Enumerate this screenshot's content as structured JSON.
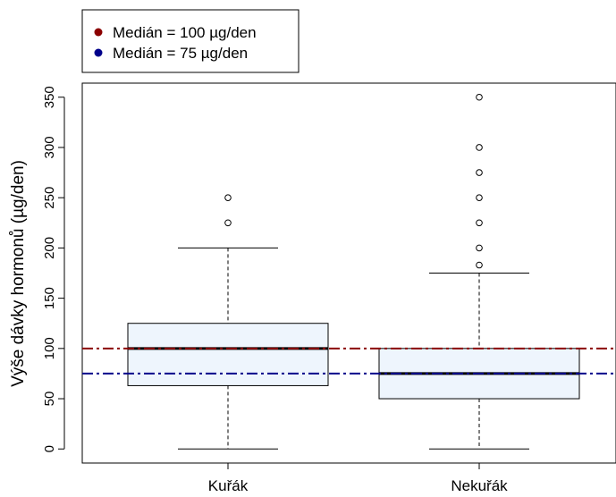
{
  "chart_data": {
    "type": "box",
    "ylabel": "Výše dávky hormonů (µg/den)",
    "ylim": [
      -14,
      364
    ],
    "yticks": [
      0,
      50,
      100,
      150,
      200,
      250,
      300,
      350
    ],
    "categories": [
      "Kuřák",
      "Nekuřák"
    ],
    "boxes": [
      {
        "category": "Kuřák",
        "whisker_low": 0,
        "q1": 63,
        "median": 100,
        "q3": 125,
        "whisker_high": 200,
        "outliers": [
          225,
          250
        ]
      },
      {
        "category": "Nekuřák",
        "whisker_low": 0,
        "q1": 50,
        "median": 75,
        "q3": 100,
        "whisker_high": 175,
        "outliers": [
          183,
          200,
          225,
          250,
          275,
          300,
          350
        ]
      }
    ],
    "reference_lines": [
      {
        "label": "Medián = 100 µg/den",
        "value": 100,
        "color": "#8b0000"
      },
      {
        "label": "Medián = 75 µg/den",
        "value": 75,
        "color": "#00008b"
      }
    ],
    "box_fill": "#eef5fd",
    "legend_position": "top-left, outside plot"
  }
}
